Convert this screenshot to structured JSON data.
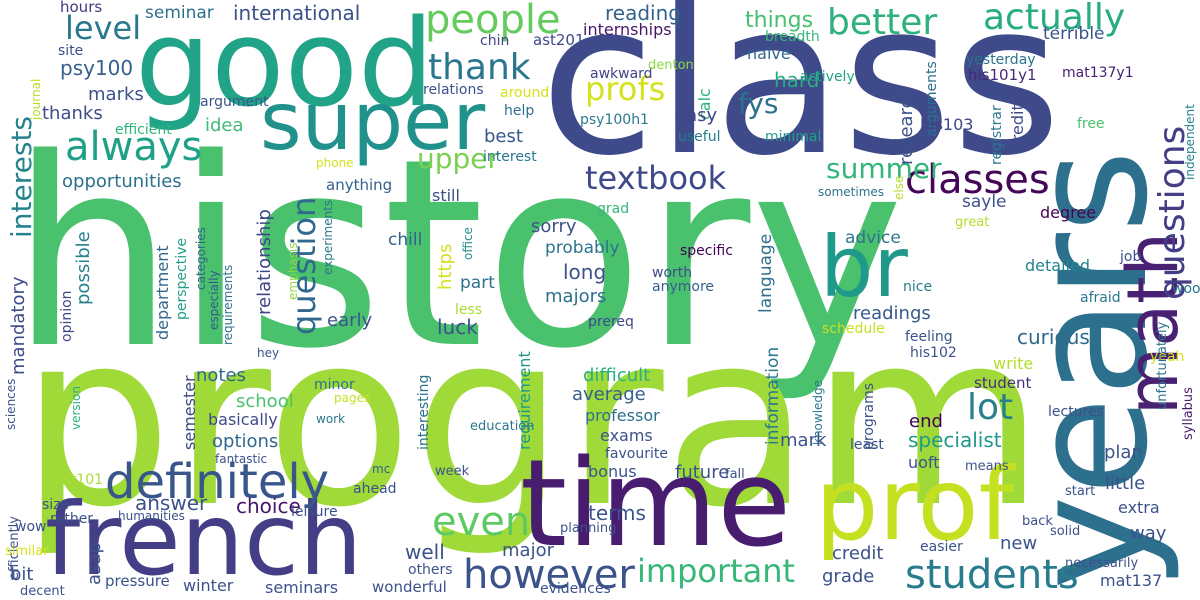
{
  "words": [
    {
      "text": "history",
      "color": "#4ac16d"
    },
    {
      "text": "program",
      "color": "#a0da39"
    },
    {
      "text": "class",
      "color": "#3e4a89"
    },
    {
      "text": "years",
      "color": "#2d708e"
    },
    {
      "text": "time",
      "color": "#481d6f"
    },
    {
      "text": "good",
      "color": "#20a386"
    },
    {
      "text": "french",
      "color": "#433e85"
    },
    {
      "text": "prof",
      "color": "#c5e021"
    },
    {
      "text": "super",
      "color": "#21918c"
    },
    {
      "text": "math",
      "color": "#482173"
    },
    {
      "text": "br",
      "color": "#1f998a"
    },
    {
      "text": "students",
      "color": "#287c8e"
    },
    {
      "text": "definitely",
      "color": "#39568c"
    },
    {
      "text": "however",
      "color": "#3b528b"
    },
    {
      "text": "classes",
      "color": "#450559"
    },
    {
      "text": "people",
      "color": "#65cb5e"
    },
    {
      "text": "better",
      "color": "#2db27d"
    },
    {
      "text": "actually",
      "color": "#27ad81"
    },
    {
      "text": "questions",
      "color": "#433e85"
    },
    {
      "text": "thank",
      "color": "#2a768e"
    },
    {
      "text": "always",
      "color": "#1fa188"
    },
    {
      "text": "important",
      "color": "#37b878"
    },
    {
      "text": "even",
      "color": "#5ec962"
    },
    {
      "text": "lot",
      "color": "#277f8e"
    },
    {
      "text": "textbook",
      "color": "#3e4989"
    },
    {
      "text": "question",
      "color": "#31688e"
    },
    {
      "text": "interests",
      "color": "#25838e"
    },
    {
      "text": "profs",
      "color": "#d2e21b"
    },
    {
      "text": "level",
      "color": "#2a788e"
    },
    {
      "text": "summer",
      "color": "#32b67a"
    },
    {
      "text": "upper",
      "color": "#7ad151"
    },
    {
      "text": "fys",
      "color": "#2c728e"
    },
    {
      "text": "reading",
      "color": "#33638d"
    },
    {
      "text": "things",
      "color": "#46c06f"
    },
    {
      "text": "internships",
      "color": "#481668"
    },
    {
      "text": "international",
      "color": "#3b528b"
    },
    {
      "text": "seminar",
      "color": "#2e6f8e"
    },
    {
      "text": "hours",
      "color": "#453882"
    },
    {
      "text": "site",
      "color": "#3c4f8a"
    },
    {
      "text": "journal",
      "color": "#b8de29"
    },
    {
      "text": "chin",
      "color": "#414487"
    },
    {
      "text": "ast201",
      "color": "#3f4889"
    },
    {
      "text": "breadth",
      "color": "#35b779"
    },
    {
      "text": "yesterday",
      "color": "#2c728e"
    },
    {
      "text": "terrible",
      "color": "#3a538b"
    },
    {
      "text": "mat137y1",
      "color": "#482071"
    },
    {
      "text": "psy100",
      "color": "#35608d"
    },
    {
      "text": "marks",
      "color": "#3b528b"
    },
    {
      "text": "thanks",
      "color": "#3e4c8a"
    },
    {
      "text": "argument",
      "color": "#3a548c"
    },
    {
      "text": "efficient",
      "color": "#2eb37c"
    },
    {
      "text": "idea",
      "color": "#3fbc73"
    },
    {
      "text": "opportunities",
      "color": "#2d708e"
    },
    {
      "text": "relations",
      "color": "#3b528b"
    },
    {
      "text": "around",
      "color": "#d8e219"
    },
    {
      "text": "help",
      "color": "#2c728e"
    },
    {
      "text": "psy100h1",
      "color": "#2a788e"
    },
    {
      "text": "awkward",
      "color": "#414487"
    },
    {
      "text": "denton",
      "color": "#8fd744"
    },
    {
      "text": "naive",
      "color": "#31688e"
    },
    {
      "text": "hard",
      "color": "#29af7f"
    },
    {
      "text": "actively",
      "color": "#20a386"
    },
    {
      "text": "arguments",
      "color": "#2d708e"
    },
    {
      "text": "his101y1",
      "color": "#482878"
    },
    {
      "text": "calc",
      "color": "#2ab07f"
    },
    {
      "text": "easy",
      "color": "#3f4788"
    },
    {
      "text": "useful",
      "color": "#287c8e"
    },
    {
      "text": "minimal",
      "color": "#1fa188"
    },
    {
      "text": "research",
      "color": "#3b528b"
    },
    {
      "text": "his103",
      "color": "#404588"
    },
    {
      "text": "credits",
      "color": "#3e4a89"
    },
    {
      "text": "registrar",
      "color": "#2a788e"
    },
    {
      "text": "free",
      "color": "#4ac16d"
    },
    {
      "text": "independent",
      "color": "#26828e"
    },
    {
      "text": "best",
      "color": "#38598c"
    },
    {
      "text": "interest",
      "color": "#2a788e"
    },
    {
      "text": "phone",
      "color": "#d5e21a"
    },
    {
      "text": "anything",
      "color": "#34618d"
    },
    {
      "text": "still",
      "color": "#3b528b"
    },
    {
      "text": "sometimes",
      "color": "#2c738e"
    },
    {
      "text": "else",
      "color": "#b5de2b"
    },
    {
      "text": "degree",
      "color": "#440154"
    },
    {
      "text": "sayle",
      "color": "#3b528b"
    },
    {
      "text": "great",
      "color": "#b5de2b"
    },
    {
      "text": "job",
      "color": "#3b528b"
    },
    {
      "text": "woot",
      "color": "#2c738e"
    },
    {
      "text": "mandatory",
      "color": "#3e4c8a"
    },
    {
      "text": "relationship",
      "color": "#3f4788"
    },
    {
      "text": "https",
      "color": "#d2e21b"
    },
    {
      "text": "sorry",
      "color": "#3b528b"
    },
    {
      "text": "advice",
      "color": "#2c738e"
    },
    {
      "text": "specific",
      "color": "#440154"
    },
    {
      "text": "language",
      "color": "#2d708e"
    },
    {
      "text": "possible",
      "color": "#26828e"
    },
    {
      "text": "department",
      "color": "#31688e"
    },
    {
      "text": "perspective",
      "color": "#1f9e89"
    },
    {
      "text": "categories",
      "color": "#34618d"
    },
    {
      "text": "especially",
      "color": "#38588c"
    },
    {
      "text": "requirements",
      "color": "#2d708e"
    },
    {
      "text": "emphasis",
      "color": "#8fd744"
    },
    {
      "text": "experiments",
      "color": "#2a768e"
    },
    {
      "text": "office",
      "color": "#21918c"
    },
    {
      "text": "grad",
      "color": "#35b779"
    },
    {
      "text": "probably",
      "color": "#2a768e"
    },
    {
      "text": "chill",
      "color": "#33638d"
    },
    {
      "text": "worth",
      "color": "#3e4c8a"
    },
    {
      "text": "anymore",
      "color": "#35608d"
    },
    {
      "text": "detailed",
      "color": "#25848e"
    },
    {
      "text": "opinion",
      "color": "#414487"
    },
    {
      "text": "less",
      "color": "#aadc32"
    },
    {
      "text": "part",
      "color": "#2c728e"
    },
    {
      "text": "long",
      "color": "#3b528b"
    },
    {
      "text": "majors",
      "color": "#2d708e"
    },
    {
      "text": "early",
      "color": "#39568c"
    },
    {
      "text": "luck",
      "color": "#3b528b"
    },
    {
      "text": "prereq",
      "color": "#3f4889"
    },
    {
      "text": "readings",
      "color": "#38598c"
    },
    {
      "text": "nice",
      "color": "#287d8e"
    },
    {
      "text": "afraid",
      "color": "#2a788e"
    },
    {
      "text": "schedule",
      "color": "#c8e020"
    },
    {
      "text": "feeling",
      "color": "#3b528b"
    },
    {
      "text": "his102",
      "color": "#3b528b"
    },
    {
      "text": "yeah",
      "color": "#d8e219"
    },
    {
      "text": "curious",
      "color": "#31688e"
    },
    {
      "text": "information",
      "color": "#2a788e"
    },
    {
      "text": "requirement",
      "color": "#1f988b"
    },
    {
      "text": "interesting",
      "color": "#2c728e"
    },
    {
      "text": "hey",
      "color": "#3b528b"
    },
    {
      "text": "sciences",
      "color": "#3b528b"
    },
    {
      "text": "version",
      "color": "#2ab07f"
    },
    {
      "text": "minor",
      "color": "#2c738e"
    },
    {
      "text": "notes",
      "color": "#31688e"
    },
    {
      "text": "difficult",
      "color": "#2ab07f"
    },
    {
      "text": "average",
      "color": "#355f8d"
    },
    {
      "text": "school",
      "color": "#4ac16d"
    },
    {
      "text": "semester",
      "color": "#404688"
    },
    {
      "text": "basically",
      "color": "#3e4a89"
    },
    {
      "text": "professor",
      "color": "#2d708e"
    },
    {
      "text": "pages",
      "color": "#c5e021"
    },
    {
      "text": "work",
      "color": "#2a788e"
    },
    {
      "text": "options",
      "color": "#31688e"
    },
    {
      "text": "exams",
      "color": "#3b528b"
    },
    {
      "text": "favourite",
      "color": "#3b528b"
    },
    {
      "text": "end",
      "color": "#440154"
    },
    {
      "text": "specialist",
      "color": "#1f9a8a"
    },
    {
      "text": "write",
      "color": "#b5de2b"
    },
    {
      "text": "student",
      "color": "#472d7b"
    },
    {
      "text": "unfortunately",
      "color": "#2d708e"
    },
    {
      "text": "syllabus",
      "color": "#481b6d"
    },
    {
      "text": "knowledge",
      "color": "#2a788e"
    },
    {
      "text": "programs",
      "color": "#3b528b"
    },
    {
      "text": "lectures",
      "color": "#3b528b"
    },
    {
      "text": "education",
      "color": "#2a788e"
    },
    {
      "text": "fantastic",
      "color": "#3b528b"
    },
    {
      "text": "mc",
      "color": "#35608d"
    },
    {
      "text": "means",
      "color": "#3b528b"
    },
    {
      "text": "ast101",
      "color": "#a8db34"
    },
    {
      "text": "size",
      "color": "#3b528b"
    },
    {
      "text": "rather",
      "color": "#3b528b"
    },
    {
      "text": "efficiently",
      "color": "#3b528b"
    },
    {
      "text": "wow",
      "color": "#3b528b"
    },
    {
      "text": "similar",
      "color": "#d8e219"
    },
    {
      "text": "decent",
      "color": "#3b528b"
    },
    {
      "text": "humanities",
      "color": "#3b528b"
    },
    {
      "text": "answer",
      "color": "#3b528b"
    },
    {
      "text": "choice",
      "color": "#481668"
    },
    {
      "text": "ahead",
      "color": "#3b528b"
    },
    {
      "text": "leisure",
      "color": "#3b528b"
    },
    {
      "text": "well",
      "color": "#3b528b"
    },
    {
      "text": "asap",
      "color": "#3b528b"
    },
    {
      "text": "bit",
      "color": "#3b528b"
    },
    {
      "text": "pressure",
      "color": "#3b528b"
    },
    {
      "text": "winter",
      "color": "#3b528b"
    },
    {
      "text": "seminars",
      "color": "#3b528b"
    },
    {
      "text": "wonderful",
      "color": "#3b528b"
    },
    {
      "text": "others",
      "color": "#3b528b"
    },
    {
      "text": "evidences",
      "color": "#3b528b"
    },
    {
      "text": "week",
      "color": "#3b528b"
    },
    {
      "text": "bonus",
      "color": "#3b528b"
    },
    {
      "text": "future",
      "color": "#3b528b"
    },
    {
      "text": "fall",
      "color": "#3b528b"
    },
    {
      "text": "mark",
      "color": "#3b528b"
    },
    {
      "text": "least",
      "color": "#3b528b"
    },
    {
      "text": "uoft",
      "color": "#3b528b"
    },
    {
      "text": "terms",
      "color": "#3b528b"
    },
    {
      "text": "major",
      "color": "#3b528b"
    },
    {
      "text": "planning",
      "color": "#3b528b"
    },
    {
      "text": "credit",
      "color": "#3b528b"
    },
    {
      "text": "grade",
      "color": "#3b528b"
    },
    {
      "text": "plan",
      "color": "#3b528b"
    },
    {
      "text": "little",
      "color": "#3b528b"
    },
    {
      "text": "start",
      "color": "#3b528b"
    },
    {
      "text": "extra",
      "color": "#3b528b"
    },
    {
      "text": "way",
      "color": "#3b528b"
    },
    {
      "text": "back",
      "color": "#3b528b"
    },
    {
      "text": "solid",
      "color": "#3b528b"
    },
    {
      "text": "easier",
      "color": "#3b528b"
    },
    {
      "text": "new",
      "color": "#3b528b"
    },
    {
      "text": "necessarily",
      "color": "#3b528b"
    },
    {
      "text": "mat137",
      "color": "#3b528b"
    }
  ]
}
